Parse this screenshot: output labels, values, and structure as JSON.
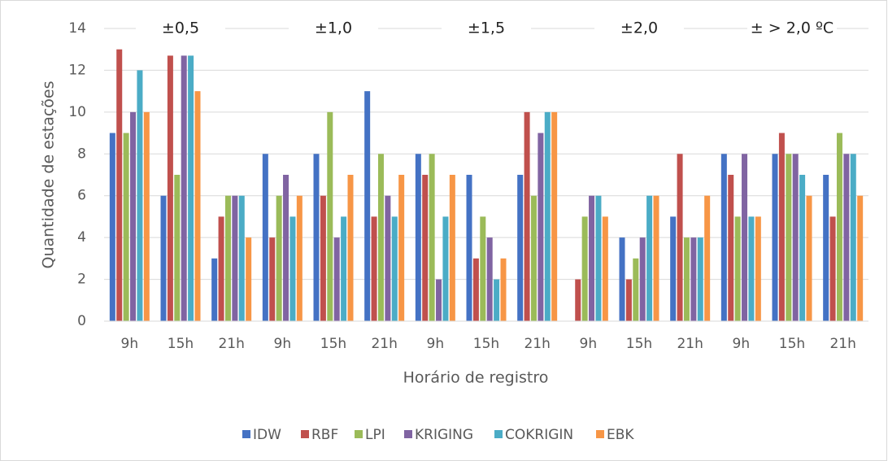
{
  "chart_data": {
    "type": "bar",
    "x_label": "Horário de registro",
    "y_label": "Quantidade de estações",
    "group_labels": [
      "±0,5",
      "±1,0",
      "±1,5",
      "±2,0",
      "± > 2,0 ºC"
    ],
    "categories": [
      "9h",
      "15h",
      "21h",
      "9h",
      "15h",
      "21h",
      "9h",
      "15h",
      "21h",
      "9h",
      "15h",
      "21h",
      "9h",
      "15h",
      "21h"
    ],
    "series": [
      {
        "name": "IDW",
        "color": "#4472c4",
        "values": [
          9,
          6,
          3,
          8,
          8,
          11,
          8,
          7,
          7,
          0,
          4,
          5,
          8,
          8,
          7
        ]
      },
      {
        "name": "RBF",
        "color": "#c0504d",
        "values": [
          13,
          12.7,
          5,
          4,
          6,
          5,
          7,
          3,
          10,
          2,
          2,
          8,
          7,
          9,
          5
        ]
      },
      {
        "name": "LPI",
        "color": "#9bbb59",
        "values": [
          9,
          7,
          6,
          6,
          10,
          8,
          8,
          5,
          6,
          5,
          3,
          4,
          5,
          8,
          9
        ]
      },
      {
        "name": "KRIGING",
        "color": "#8064a2",
        "values": [
          10,
          12.7,
          6,
          7,
          4,
          6,
          2,
          4,
          9,
          6,
          4,
          4,
          8,
          8,
          8
        ]
      },
      {
        "name": "COKRIGIN",
        "color": "#4bacc6",
        "values": [
          12,
          12.7,
          6,
          5,
          5,
          5,
          5,
          2,
          10,
          6,
          6,
          4,
          5,
          7,
          8
        ]
      },
      {
        "name": "EBK",
        "color": "#f79646",
        "values": [
          10,
          11,
          4,
          6,
          7,
          7,
          7,
          3,
          10,
          5,
          6,
          6,
          5,
          6,
          6
        ]
      }
    ],
    "ylim": [
      0,
      14
    ],
    "yticks": [
      0,
      2,
      4,
      6,
      8,
      10,
      12,
      14
    ],
    "grid": true,
    "legend": "bottom"
  }
}
